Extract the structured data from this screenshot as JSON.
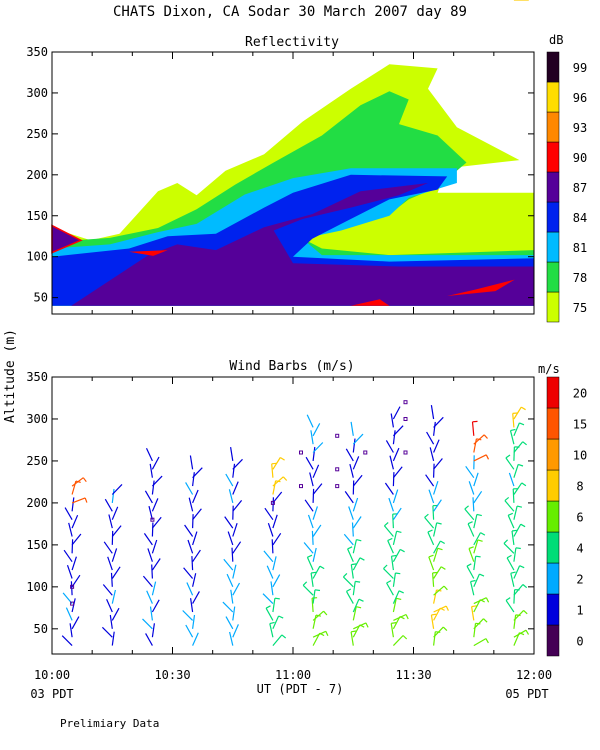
{
  "title": "CHATS Dixon, CA  Sodar  30 March 2007  day  89",
  "footer_note": "Prelimiary Data",
  "y_axis_label": "Altitude (m)",
  "x_axis": {
    "label": "UT  (PDT - 7)",
    "ticks": [
      "10:00",
      "10:30",
      "11:00",
      "11:30",
      "12:00"
    ],
    "start_local": "03 PDT",
    "end_local": "05 PDT"
  },
  "chart_data": [
    {
      "type": "heatmap",
      "title": "Reflectivity",
      "ylim": [
        30,
        350
      ],
      "yticks": [
        50,
        100,
        150,
        200,
        250,
        300,
        350
      ],
      "colorbar": {
        "unit": "dB",
        "levels": [
          75,
          78,
          81,
          84,
          87,
          90,
          93,
          96,
          99
        ],
        "colors": [
          "#ccff00",
          "#22dd44",
          "#00bbff",
          "#0022ee",
          "#550099",
          "#ff0000",
          "#ff8800",
          "#ffdd00",
          "#220022"
        ]
      },
      "contour_regions": [
        {
          "level": 75,
          "points": [
            [
              0,
              40
            ],
            [
              0,
              135
            ],
            [
              8,
              120
            ],
            [
              14,
              128
            ],
            [
              22,
              180
            ],
            [
              26,
              190
            ],
            [
              30,
              175
            ],
            [
              36,
              205
            ],
            [
              44,
              225
            ],
            [
              52,
              265
            ],
            [
              62,
              305
            ],
            [
              70,
              335
            ],
            [
              80,
              330
            ],
            [
              78,
              305
            ],
            [
              84,
              258
            ],
            [
              97,
              218
            ],
            [
              82,
              208
            ],
            [
              80,
              178
            ],
            [
              97,
              178
            ],
            [
              100,
              178
            ],
            [
              100,
              40
            ]
          ]
        },
        {
          "level": 78,
          "points": [
            [
              0,
              40
            ],
            [
              0,
              118
            ],
            [
              12,
              123
            ],
            [
              22,
              135
            ],
            [
              30,
              158
            ],
            [
              38,
              188
            ],
            [
              46,
              215
            ],
            [
              56,
              248
            ],
            [
              64,
              285
            ],
            [
              70,
              302
            ],
            [
              74,
              292
            ],
            [
              72,
              262
            ],
            [
              80,
              248
            ],
            [
              86,
              215
            ],
            [
              80,
              185
            ],
            [
              74,
              170
            ],
            [
              70,
              152
            ],
            [
              60,
              140
            ],
            [
              54,
              152
            ],
            [
              50,
              128
            ],
            [
              56,
              110
            ],
            [
              70,
              102
            ],
            [
              100,
              108
            ],
            [
              100,
              40
            ]
          ]
        },
        {
          "level": 81,
          "points": [
            [
              0,
              40
            ],
            [
              0,
              110
            ],
            [
              12,
              115
            ],
            [
              22,
              130
            ],
            [
              30,
              140
            ],
            [
              40,
              176
            ],
            [
              50,
              196
            ],
            [
              62,
              208
            ],
            [
              84,
              208
            ],
            [
              84,
              190
            ],
            [
              74,
              172
            ],
            [
              70,
              150
            ],
            [
              60,
              132
            ],
            [
              52,
              122
            ],
            [
              56,
              102
            ],
            [
              100,
              102
            ],
            [
              100,
              40
            ]
          ]
        },
        {
          "level": 84,
          "points": [
            [
              0,
              40
            ],
            [
              0,
              100
            ],
            [
              16,
              110
            ],
            [
              24,
              125
            ],
            [
              34,
              128
            ],
            [
              44,
              160
            ],
            [
              50,
              178
            ],
            [
              62,
              200
            ],
            [
              82,
              198
            ],
            [
              80,
              182
            ],
            [
              70,
              170
            ],
            [
              60,
              140
            ],
            [
              54,
              122
            ],
            [
              50,
              100
            ],
            [
              70,
              94
            ],
            [
              100,
              98
            ],
            [
              100,
              40
            ]
          ]
        },
        {
          "level": 87,
          "points": [
            [
              4,
              40
            ],
            [
              20,
              102
            ],
            [
              26,
              115
            ],
            [
              34,
              108
            ],
            [
              44,
              136
            ],
            [
              54,
              152
            ],
            [
              64,
              180
            ],
            [
              78,
              190
            ],
            [
              72,
              175
            ],
            [
              62,
              160
            ],
            [
              52,
              146
            ],
            [
              46,
              132
            ],
            [
              50,
              92
            ],
            [
              72,
              88
            ],
            [
              100,
              88
            ],
            [
              100,
              40
            ]
          ]
        },
        {
          "level": 90,
          "points": [
            [
              16,
              106
            ],
            [
              21,
              101
            ],
            [
              24,
              108
            ]
          ]
        },
        {
          "level": 90,
          "points": [
            [
              62,
              40
            ],
            [
              70,
              40
            ],
            [
              68,
              48
            ]
          ]
        },
        {
          "level": 90,
          "points": [
            [
              82,
              52
            ],
            [
              92,
              58
            ],
            [
              96,
              72
            ],
            [
              88,
              60
            ]
          ]
        }
      ]
    },
    {
      "type": "scatter",
      "title": "Wind Barbs (m/s)",
      "ylim": [
        20,
        350
      ],
      "yticks": [
        50,
        100,
        150,
        200,
        250,
        300,
        350
      ],
      "colorbar": {
        "unit": "m/s",
        "levels": [
          0,
          1,
          2,
          4,
          6,
          8,
          10,
          15,
          20
        ],
        "colors": [
          "#440055",
          "#0000dd",
          "#00aaff",
          "#00dd77",
          "#66ee00",
          "#ffcc00",
          "#ff9900",
          "#ff5500",
          "#ee0000"
        ]
      },
      "barb_altitudes": [
        30,
        40,
        50,
        60,
        70,
        80,
        90,
        100,
        110,
        120,
        130,
        140,
        150,
        160,
        170,
        180,
        190,
        200,
        210,
        220,
        230,
        240,
        250,
        260,
        270,
        280,
        290,
        300
      ],
      "profiles": [
        {
          "time": "10:05",
          "top": 230,
          "speeds": [
            1,
            1,
            1,
            2,
            1,
            2,
            1,
            1,
            1,
            1,
            1,
            1,
            1,
            1,
            1,
            1,
            1,
            15,
            15,
            15
          ]
        },
        {
          "time": "10:15",
          "top": 220,
          "speeds": [
            1,
            1,
            1,
            1,
            1,
            2,
            1,
            1,
            1,
            1,
            1,
            1,
            1,
            1,
            1,
            1,
            1,
            2,
            1
          ]
        },
        {
          "time": "10:25",
          "top": 250,
          "speeds": [
            1,
            1,
            2,
            2,
            1,
            2,
            2,
            1,
            1,
            1,
            1,
            1,
            1,
            1,
            1,
            1,
            1,
            1,
            1,
            1,
            1,
            1,
            1
          ]
        },
        {
          "time": "10:35",
          "top": 240,
          "speeds": [
            2,
            2,
            2,
            2,
            1,
            1,
            2,
            1,
            1,
            1,
            1,
            1,
            1,
            1,
            1,
            1,
            1,
            1,
            2,
            1,
            1,
            1
          ]
        },
        {
          "time": "10:45",
          "top": 250,
          "speeds": [
            2,
            2,
            2,
            2,
            2,
            2,
            2,
            2,
            2,
            2,
            1,
            1,
            1,
            1,
            1,
            1,
            1,
            2,
            1,
            2,
            1,
            1,
            1
          ]
        },
        {
          "time": "10:55",
          "top": 240,
          "speeds": [
            4,
            4,
            4,
            4,
            4,
            2,
            2,
            2,
            2,
            2,
            2,
            1,
            1,
            1,
            1,
            1,
            1,
            1,
            8,
            8,
            8,
            8
          ]
        },
        {
          "time": "11:05",
          "top": 290,
          "speeds": [
            6,
            6,
            6,
            6,
            6,
            4,
            4,
            4,
            4,
            4,
            2,
            2,
            2,
            2,
            2,
            2,
            1,
            1,
            1,
            1,
            1,
            1,
            1,
            2,
            2,
            2,
            2
          ]
        },
        {
          "time": "11:15",
          "top": 280,
          "speeds": [
            6,
            6,
            6,
            6,
            4,
            4,
            4,
            4,
            4,
            4,
            4,
            4,
            2,
            2,
            2,
            2,
            2,
            1,
            1,
            1,
            1,
            1,
            1,
            1,
            2,
            2
          ]
        },
        {
          "time": "11:25",
          "top": 310,
          "speeds": [
            6,
            6,
            6,
            6,
            6,
            4,
            4,
            4,
            4,
            4,
            4,
            4,
            4,
            4,
            4,
            2,
            2,
            2,
            1,
            1,
            1,
            1,
            1,
            1,
            1,
            1,
            1,
            1
          ]
        },
        {
          "time": "11:35",
          "top": 320,
          "speeds": [
            6,
            6,
            8,
            8,
            8,
            8,
            6,
            6,
            6,
            6,
            6,
            4,
            4,
            4,
            4,
            4,
            2,
            2,
            2,
            1,
            1,
            1,
            1,
            1,
            1,
            1,
            1,
            1
          ]
        },
        {
          "time": "11:45",
          "top": 280,
          "speeds": [
            6,
            6,
            6,
            8,
            6,
            6,
            4,
            4,
            4,
            4,
            6,
            6,
            4,
            4,
            4,
            4,
            2,
            2,
            2,
            2,
            2,
            2,
            15,
            15,
            15,
            20
          ]
        },
        {
          "time": "11:55",
          "top": 330,
          "speeds": [
            6,
            6,
            6,
            6,
            4,
            4,
            4,
            4,
            4,
            4,
            4,
            4,
            4,
            4,
            4,
            4,
            4,
            4,
            4,
            2,
            4,
            4,
            4,
            4,
            4,
            4,
            8,
            8,
            8
          ]
        }
      ]
    }
  ]
}
